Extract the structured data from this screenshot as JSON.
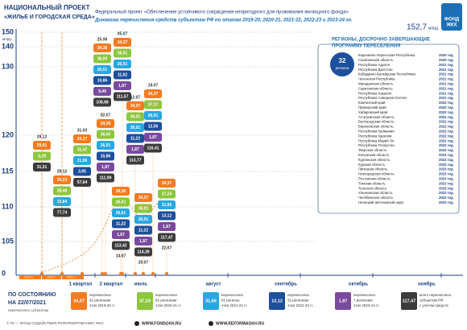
{
  "header": {
    "title_line1": "НАЦИОНАЛЬНЫЙ ПРОЕКТ",
    "title_line2": "«ЖИЛЬЕ И ГОРОДСКАЯ СРЕДА»",
    "project": "Федеральный проект «Обеспечение устойчивого сокращения  непригодного для проживания жилищного фонда»",
    "subtitle": "Динамика перечисления средств субъектам РФ по этапам 2019-20, 2020-21, 2021-22, 2022-23 и 2023-24 гг.",
    "total": "152,7",
    "total_unit": "млрд.",
    "logo_line1": "ФОНД",
    "logo_line2": "ЖКХ"
  },
  "axis": {
    "y_labels": [
      150,
      140,
      130,
      120,
      115,
      110,
      105,
      0
    ],
    "y_unit": "млрд.",
    "x_labels": [
      "1 квартал",
      "2 квартал",
      "июль",
      "август",
      "сентябрь",
      "октябрь",
      "ноябрь"
    ],
    "years": [
      "2019 г.",
      "2020 г.",
      "2021 г."
    ]
  },
  "columns": [
    {
      "date": "29.12",
      "chips": [
        "29,91",
        "3,29",
        "31,31"
      ]
    },
    {
      "date": "29.12",
      "chips": [
        "34,23",
        "28,48",
        "15,84",
        "77,74"
      ]
    },
    {
      "date": "31.03",
      "chips": [
        "34,27",
        "31,47",
        "21,96",
        "3,95",
        "57,64"
      ]
    },
    {
      "date": "25.06",
      "chips": [
        "34,36",
        "36,00",
        "26,01",
        "10,86",
        "9,49",
        "108,68"
      ]
    },
    {
      "date": "05.07",
      "chips": [
        "34,37",
        "36,01",
        "26,01",
        "11,02",
        "1,87",
        "111,57"
      ]
    },
    {
      "date": "02.07",
      "chips": [
        "34,36",
        "36,00",
        "26,01",
        "10,86",
        "1,87",
        "111,99"
      ]
    },
    {
      "date": "12.07",
      "chips": [
        "34,37",
        "36,01",
        "26,01",
        "11,22",
        "1,87",
        "113,77"
      ]
    },
    {
      "date": "19.07",
      "chips": [
        "34,37",
        "37,17",
        "26,01",
        "12,56",
        "1,87",
        "116,41"
      ]
    },
    {
      "date": "14.07",
      "chips": [
        "34,36",
        "36,01",
        "26,01",
        "11,22",
        "1,87",
        "113,42"
      ]
    },
    {
      "date": "20.07",
      "chips": [
        "34,37",
        "36,01",
        "26,01",
        "11,22",
        "1,87",
        "114,39"
      ]
    },
    {
      "date": "22.07",
      "chips": [
        "34,37",
        "37,24",
        "31,66",
        "13,12",
        "1,87",
        "117,47"
      ]
    }
  ],
  "regions": {
    "title_line1": "РЕГИОНЫ, ДОСРОЧНО ЗАВЕРШАЮЩИЕ",
    "title_line2": "ПРОГРАММУ ПЕРЕСЕЛЕНИЯ",
    "count": "32",
    "count_label": "региона",
    "list": [
      {
        "name": "Карачаево-Черкесская Республика",
        "year": "2020 год"
      },
      {
        "name": "Сахалинская область",
        "year": "2020 год"
      },
      {
        "name": "Республика Адыгея",
        "year": "2021 год"
      },
      {
        "name": "Республика Дагестан",
        "year": "2021 год"
      },
      {
        "name": "Кабардино-Балкарская Республика",
        "year": "2021 год"
      },
      {
        "name": "Чеченская Республика",
        "year": "2021 год"
      },
      {
        "name": "Магаданская область",
        "year": "2021 год"
      },
      {
        "name": "Саратовская область",
        "year": "2021 год"
      },
      {
        "name": "Республика Хакасия",
        "year": "2021 год"
      },
      {
        "name": "Республика Северная Осетия",
        "year": "2021 год"
      },
      {
        "name": "Камчатский край",
        "year": "2022 год"
      },
      {
        "name": "Приморский край",
        "year": "2022 год"
      },
      {
        "name": "Хабаровский край",
        "year": "2022 год"
      },
      {
        "name": "Астраханская область",
        "year": "2022 год"
      },
      {
        "name": "Белгородская область",
        "year": "2022 год"
      },
      {
        "name": "Воронежская область",
        "year": "2022 год"
      },
      {
        "name": "Республика Калмыкия",
        "year": "2022 год"
      },
      {
        "name": "Республика Карелия",
        "year": "2022 год"
      },
      {
        "name": "Республика Марий Эл",
        "year": "2022 год"
      },
      {
        "name": "Республика Татарстан",
        "year": "2022 год"
      },
      {
        "name": "Тверская область",
        "year": "2022 год"
      },
      {
        "name": "Калужская область",
        "year": "2023 год"
      },
      {
        "name": "Курганская область",
        "year": "2023 год"
      },
      {
        "name": "Курская область",
        "year": "2023 год"
      },
      {
        "name": "Липецкая область",
        "year": "2023 год"
      },
      {
        "name": "Новгородская область",
        "year": "2023 год"
      },
      {
        "name": "Ростовская область",
        "year": "2023 год"
      },
      {
        "name": "Томская область",
        "year": "2023 год"
      },
      {
        "name": "Тульская область",
        "year": "2023 год"
      },
      {
        "name": "Ульяновская область",
        "year": "2023 год"
      },
      {
        "name": "Челябинская область",
        "year": "2023 год"
      },
      {
        "name": "Ненецкий автономный округ",
        "year": "2023 год"
      }
    ]
  },
  "legend": {
    "status_line1": "ПО СОСТОЯНИЮ",
    "status_line2": "НА 22/07/2021",
    "note": "перечислено субъектам",
    "items": [
      {
        "value": "34,37",
        "color": "#f47b20",
        "lines": [
          "перечислено",
          "82 регионам",
          "этап 2019-20 гг."
        ]
      },
      {
        "value": "37,24",
        "color": "#8dc63f",
        "lines": [
          "перечислено",
          "82 регионам",
          "этап 2020-21 гг."
        ]
      },
      {
        "value": "31,66",
        "color": "#27a8e0",
        "lines": [
          "перечислено",
          "81 региону",
          "этап 2021-22 гг."
        ]
      },
      {
        "value": "13,12",
        "color": "#1c4f9c",
        "lines": [
          "перечислено",
          "32 регионам",
          "этап 2022-23 гг."
        ]
      },
      {
        "value": "1,87",
        "color": "#7a4a9d",
        "lines": [
          "перечислено",
          "7 регионам",
          "этап 2023-24 гг."
        ]
      },
      {
        "value": "117,47",
        "color": "#3c3c3c",
        "lines": [
          "всего перечислено",
          "субъектам РФ",
          "с учетом средств"
        ]
      }
    ]
  },
  "footer": {
    "copyright": "© ГК — ФОНД СОДЕЙСТВИЯ РЕФОРМИРОВАНИЮ ЖКХ",
    "sites": [
      "WWW.FONDGKH.RU",
      "WWW.REFORMAGKH.RU"
    ]
  }
}
